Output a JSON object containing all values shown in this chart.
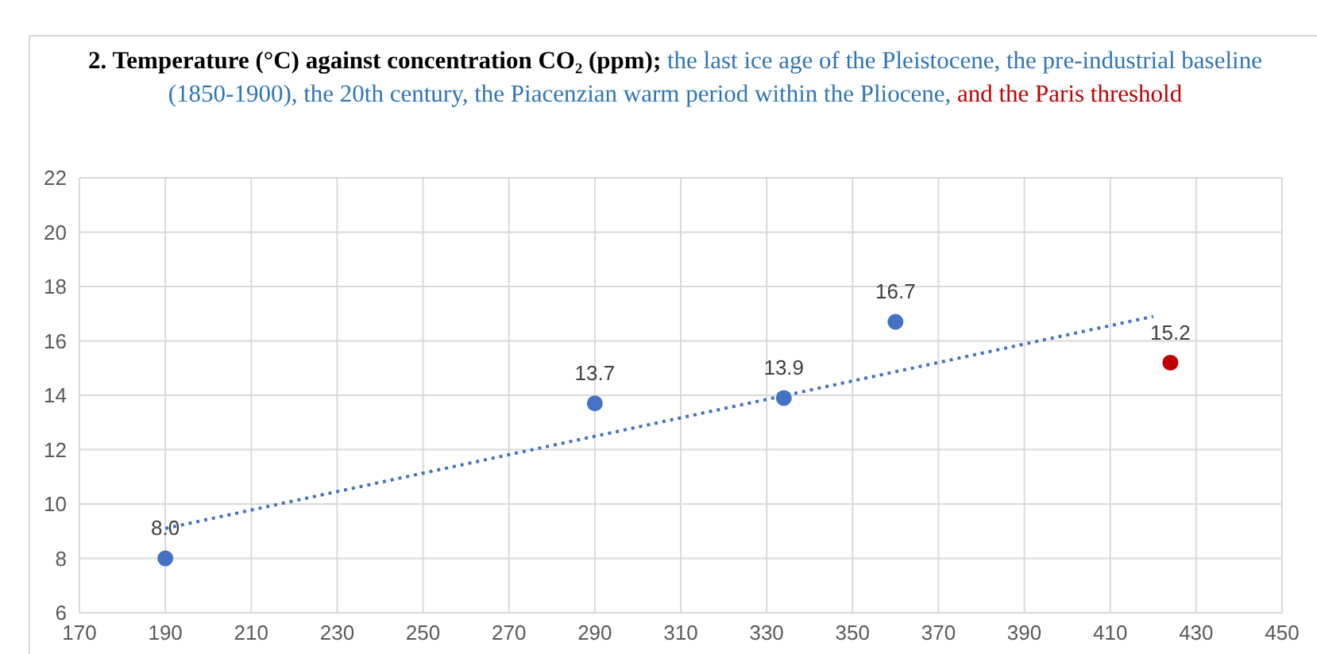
{
  "chart_data": {
    "type": "scatter",
    "title": "2. Temperature (°C) against concentration CO₂ (ppm);",
    "subtitle": "the last ice age of the Pleistocene, the pre-industrial baseline (1850-1900), the 20th century, the Piacenzian warm period within the Pliocene,",
    "annotations": [
      "and the Paris threshold"
    ],
    "series": [
      {
        "color": "#4472c4",
        "x": [
          190,
          290,
          334,
          360
        ],
        "values": [
          8.0,
          13.7,
          13.9,
          16.7
        ],
        "value_labels": [
          "8.0",
          "13.7",
          "13.9",
          "16.7"
        ]
      },
      {
        "color": "#c00000",
        "x": [
          424
        ],
        "values": [
          15.2
        ],
        "value_labels": [
          "15.2"
        ]
      },
      {
        "type": "line",
        "color": "#4472c4",
        "line_style": "dotted",
        "marker": "none",
        "x": [
          190,
          420
        ],
        "values": [
          9.1,
          16.9
        ]
      }
    ],
    "xlim": [
      170,
      450
    ],
    "xticks": [
      170,
      190,
      210,
      230,
      250,
      270,
      290,
      310,
      330,
      350,
      370,
      390,
      410,
      430,
      450
    ],
    "ylim": [
      6,
      22
    ],
    "yticks": [
      6,
      8,
      10,
      12,
      14,
      16,
      18,
      20,
      22
    ],
    "grid": true,
    "marker": "circle"
  }
}
